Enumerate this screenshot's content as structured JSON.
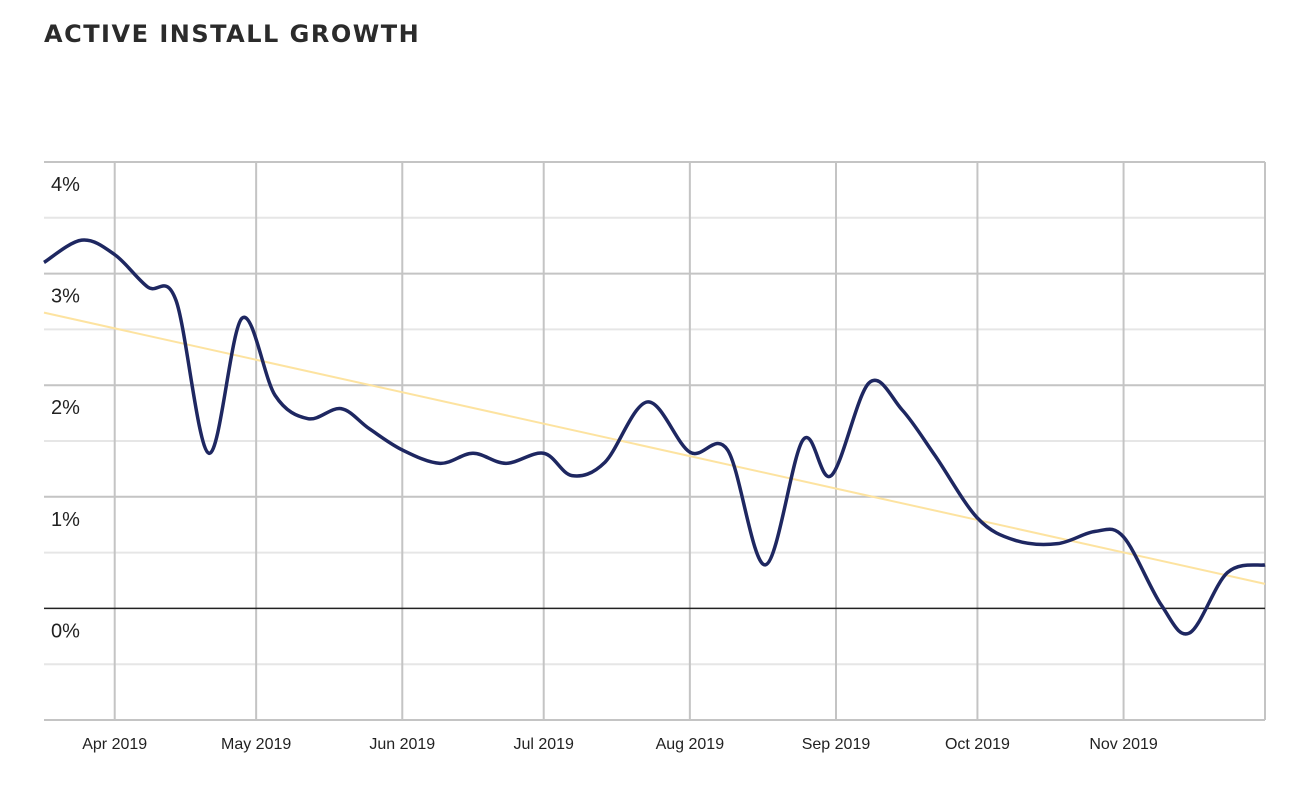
{
  "title": "ACTIVE INSTALL GROWTH",
  "chart_data": {
    "type": "line",
    "title": "ACTIVE INSTALL GROWTH",
    "xlabel": "",
    "ylabel": "",
    "xlim": [
      "2019-03-17",
      "2019-12-01"
    ],
    "ylim": [
      -1,
      4
    ],
    "grid": true,
    "legend": "none",
    "x_tick_labels": [
      {
        "date": "2019-04-01",
        "label": "Apr 2019"
      },
      {
        "date": "2019-05-01",
        "label": "May 2019"
      },
      {
        "date": "2019-06-01",
        "label": "Jun 2019"
      },
      {
        "date": "2019-07-01",
        "label": "Jul 2019"
      },
      {
        "date": "2019-08-01",
        "label": "Aug 2019"
      },
      {
        "date": "2019-09-01",
        "label": "Sep 2019"
      },
      {
        "date": "2019-10-01",
        "label": "Oct 2019"
      },
      {
        "date": "2019-11-01",
        "label": "Nov 2019"
      }
    ],
    "y_tick_labels": [
      {
        "value": 4,
        "label": "4%"
      },
      {
        "value": 3,
        "label": "3%"
      },
      {
        "value": 2,
        "label": "2%"
      },
      {
        "value": 1,
        "label": "1%"
      },
      {
        "value": 0,
        "label": "0%"
      }
    ],
    "series": [
      {
        "color": "#1e2761",
        "points": [
          [
            "2019-03-17",
            3.1
          ],
          [
            "2019-03-25",
            3.3
          ],
          [
            "2019-04-01",
            3.17
          ],
          [
            "2019-04-08",
            2.88
          ],
          [
            "2019-04-14",
            2.76
          ],
          [
            "2019-04-21",
            1.39
          ],
          [
            "2019-04-28",
            2.6
          ],
          [
            "2019-05-05",
            1.91
          ],
          [
            "2019-05-12",
            1.7
          ],
          [
            "2019-05-19",
            1.79
          ],
          [
            "2019-05-25",
            1.61
          ],
          [
            "2019-06-01",
            1.42
          ],
          [
            "2019-06-09",
            1.3
          ],
          [
            "2019-06-16",
            1.39
          ],
          [
            "2019-06-23",
            1.3
          ],
          [
            "2019-07-01",
            1.39
          ],
          [
            "2019-07-07",
            1.19
          ],
          [
            "2019-07-14",
            1.31
          ],
          [
            "2019-07-23",
            1.85
          ],
          [
            "2019-08-01",
            1.4
          ],
          [
            "2019-08-09",
            1.42
          ],
          [
            "2019-08-17",
            0.39
          ],
          [
            "2019-08-25",
            1.51
          ],
          [
            "2019-08-31",
            1.19
          ],
          [
            "2019-09-08",
            2.02
          ],
          [
            "2019-09-15",
            1.78
          ],
          [
            "2019-09-22",
            1.37
          ],
          [
            "2019-10-01",
            0.81
          ],
          [
            "2019-10-09",
            0.61
          ],
          [
            "2019-10-18",
            0.58
          ],
          [
            "2019-10-26",
            0.69
          ],
          [
            "2019-11-01",
            0.64
          ],
          [
            "2019-11-09",
            0.03
          ],
          [
            "2019-11-15",
            -0.22
          ],
          [
            "2019-11-23",
            0.32
          ],
          [
            "2019-12-01",
            0.39
          ]
        ]
      }
    ],
    "trendline": {
      "color": "#fde3a0",
      "points": [
        [
          "2019-03-17",
          2.65
        ],
        [
          "2019-12-01",
          0.22
        ]
      ]
    }
  }
}
